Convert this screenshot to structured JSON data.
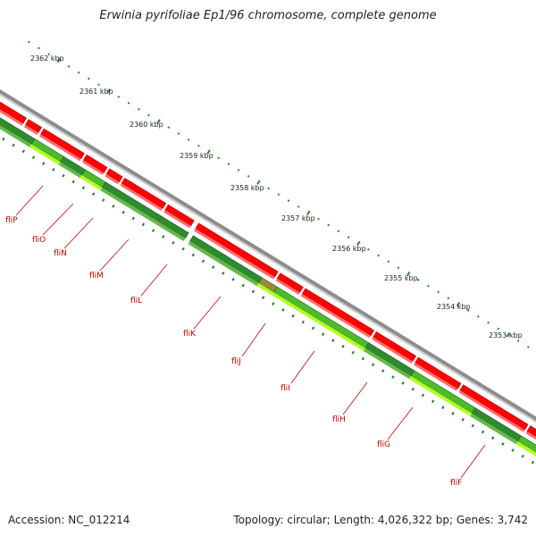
{
  "title": "Erwinia pyrifoliae Ep1/96 chromosome, complete genome",
  "footer": {
    "accession": "Accession: NC_012214",
    "summary": "Topology: circular; Length: 4,026,322 bp; Genes: 3,742"
  },
  "colors": {
    "backbone": "#8c8c8c",
    "forward_cds": "#ff0000",
    "reverse_cds": "#2e8b2e",
    "reverse_cds_light": "#b0ff20",
    "tick": "#228b22",
    "gene_label": "#cc0000"
  },
  "kbp_ticks": [
    "2362 kbp",
    "2361 kbp",
    "2360 kbp",
    "2359 kbp",
    "2358 kbp",
    "2357 kbp",
    "2356 kbp",
    "2355 kbp",
    "2354 kbp",
    "2353 kbp"
  ],
  "genes": [
    {
      "name": "fliP"
    },
    {
      "name": "fliO"
    },
    {
      "name": "fliN"
    },
    {
      "name": "fliM"
    },
    {
      "name": "fliL"
    },
    {
      "name": "fliK"
    },
    {
      "name": "fliJ"
    },
    {
      "name": "fliI"
    },
    {
      "name": "fliH"
    },
    {
      "name": "fliG"
    },
    {
      "name": "fliF"
    }
  ]
}
